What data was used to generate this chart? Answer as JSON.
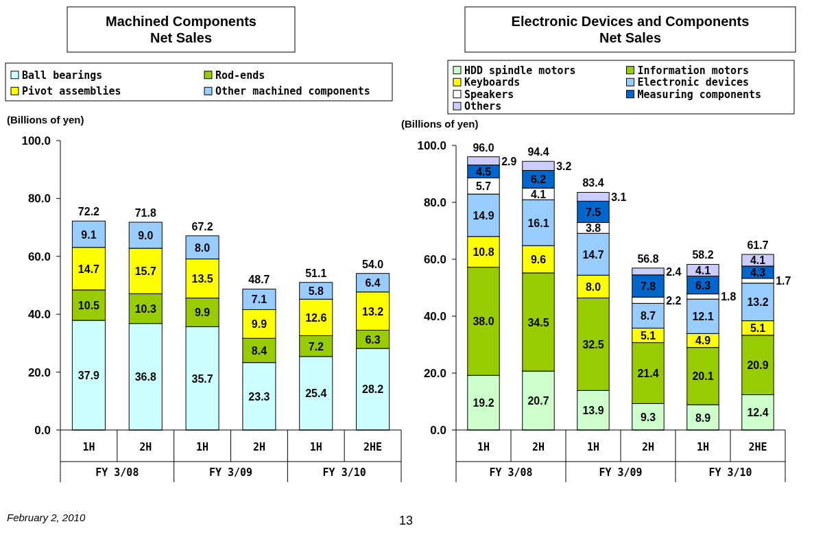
{
  "chart_data": [
    {
      "type": "bar",
      "stacked": true,
      "title": "Machined Components Net Sales",
      "ylabel": "(Billions of yen)",
      "categories": [
        "1H",
        "2H",
        "1H",
        "2H",
        "1H",
        "2HE"
      ],
      "series": [
        {
          "name": "Ball bearings",
          "color": "#ccffff",
          "values": [
            37.9,
            36.8,
            35.7,
            23.3,
            25.4,
            28.2
          ],
          "value_labels": [
            "37.9",
            "36.8",
            "35.7",
            "23.3",
            "25.4",
            "28.2"
          ]
        },
        {
          "name": "Rod-ends",
          "color": "#99cc00",
          "values": [
            10.5,
            10.3,
            9.9,
            8.4,
            7.2,
            6.3
          ],
          "value_labels": [
            "10.5",
            "10.3",
            "9.9",
            "8.4",
            "7.2",
            "6.3"
          ]
        },
        {
          "name": "Pivot assemblies",
          "color": "#ffff00",
          "values": [
            14.7,
            15.7,
            13.5,
            9.9,
            12.6,
            13.2
          ],
          "value_labels": [
            "14.7",
            "15.7",
            "13.5",
            "9.9",
            "12.6",
            "13.2"
          ]
        },
        {
          "name": "Other machined components",
          "color": "#99ccff",
          "values": [
            9.1,
            9.0,
            8.0,
            7.1,
            5.8,
            6.4
          ],
          "value_labels": [
            "9.1",
            "9.0",
            "8.0",
            "7.1",
            "5.8",
            "6.4"
          ]
        }
      ],
      "totals": [
        "72.2",
        "71.8",
        "67.2",
        "48.7",
        "51.1",
        "54.0"
      ],
      "ylim": [
        0,
        100
      ],
      "yticks": [
        {
          "value": 0,
          "label": "0.0"
        },
        {
          "value": 20,
          "label": "20.0"
        },
        {
          "value": 40,
          "label": "40.0"
        },
        {
          "value": 60,
          "label": "60.0"
        },
        {
          "value": 80,
          "label": "80.0"
        },
        {
          "value": 100,
          "label": "100.0"
        }
      ],
      "legend": "top",
      "annotations": [
        "FY 3/08",
        "FY 3/09",
        "FY 3/10",
        "February 2, 2010"
      ]
    },
    {
      "type": "bar",
      "stacked": true,
      "title": "Electronic Devices and Components Net Sales",
      "ylabel": "(Billions of yen)",
      "categories": [
        "1H",
        "2H",
        "1H",
        "2H",
        "1H",
        "2HE"
      ],
      "series": [
        {
          "name": "HDD spindle motors",
          "color": "#ccffcc",
          "values": [
            19.2,
            20.7,
            13.9,
            9.3,
            8.9,
            12.4
          ],
          "value_labels": [
            "19.2",
            "20.7",
            "13.9",
            "9.3",
            "8.9",
            "12.4"
          ]
        },
        {
          "name": "Information motors",
          "color": "#99cc00",
          "values": [
            38.0,
            34.5,
            32.5,
            21.4,
            20.1,
            20.9
          ],
          "value_labels": [
            "38.0",
            "34.5",
            "32.5",
            "21.4",
            "20.1",
            "20.9"
          ]
        },
        {
          "name": "Keyboards",
          "color": "#ffff00",
          "values": [
            10.8,
            9.6,
            8.0,
            5.1,
            4.9,
            5.1
          ],
          "value_labels": [
            "10.8",
            "9.6",
            "8.0",
            "5.1",
            "4.9",
            "5.1"
          ]
        },
        {
          "name": "Electronic devices",
          "color": "#99ccff",
          "values": [
            14.9,
            16.1,
            14.7,
            8.7,
            12.1,
            13.2
          ],
          "value_labels": [
            "14.9",
            "16.1",
            "14.7",
            "8.7",
            "12.1",
            "13.2"
          ]
        },
        {
          "name": "Speakers",
          "color": "#ffffff",
          "values": [
            5.7,
            4.1,
            3.8,
            2.2,
            1.8,
            1.7
          ],
          "value_labels": [
            "5.7",
            "4.1",
            "3.8",
            "2.2",
            "1.8",
            "1.7"
          ]
        },
        {
          "name": "Measuring components",
          "color": "#0066cc",
          "values": [
            4.5,
            6.2,
            7.5,
            7.8,
            6.3,
            4.3
          ],
          "value_labels": [
            "4.5",
            "6.2",
            "7.5",
            "7.8",
            "6.3",
            "4.3"
          ]
        },
        {
          "name": "Others",
          "color": "#ccccff",
          "values": [
            2.9,
            3.2,
            3.1,
            2.4,
            4.1,
            4.1
          ],
          "value_labels": [
            "2.9",
            "3.2",
            "3.1",
            "2.4",
            "4.1",
            "4.1"
          ]
        }
      ],
      "totals": [
        "96.0",
        "94.4",
        "83.4",
        "56.8",
        "58.2",
        "61.7"
      ],
      "ylim": [
        0,
        100
      ],
      "yticks": [
        {
          "value": 0,
          "label": "0.0"
        },
        {
          "value": 20,
          "label": "20.0"
        },
        {
          "value": 40,
          "label": "40.0"
        },
        {
          "value": 60,
          "label": "60.0"
        },
        {
          "value": 80,
          "label": "80.0"
        },
        {
          "value": 100,
          "label": "100.0"
        }
      ],
      "legend": "top",
      "annotations": [
        "FY 3/08",
        "FY 3/09",
        "FY 3/10",
        "13"
      ]
    }
  ]
}
